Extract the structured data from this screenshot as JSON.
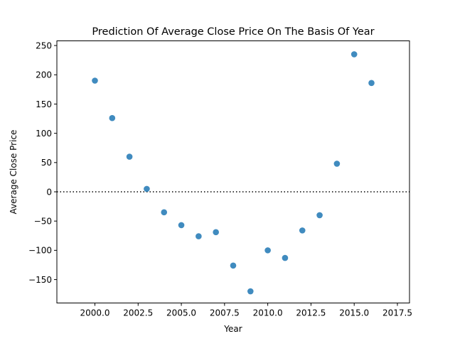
{
  "chart_data": {
    "type": "scatter",
    "title": "Prediction Of Average Close Price On The Basis Of Year",
    "xlabel": "Year",
    "ylabel": "Average Close Price",
    "xlim": [
      1997.8,
      2018.2
    ],
    "ylim": [
      -190,
      258
    ],
    "xticks": [
      2000,
      2002.5,
      2005,
      2007.5,
      2010,
      2012.5,
      2015,
      2017.5
    ],
    "xtick_labels": [
      "2000.0",
      "2002.5",
      "2005.0",
      "2007.5",
      "2010.0",
      "2012.5",
      "2015.0",
      "2017.5"
    ],
    "yticks": [
      -150,
      -100,
      -50,
      0,
      50,
      100,
      150,
      200,
      250
    ],
    "ytick_labels": [
      "−150",
      "−100",
      "−50",
      "0",
      "50",
      "100",
      "150",
      "200",
      "250"
    ],
    "reference_line": {
      "y": 0,
      "style": "dotted"
    },
    "grid": false,
    "series": [
      {
        "color": "#1f77b4",
        "x": [
          2000,
          2001,
          2002,
          2003,
          2004,
          2005,
          2006,
          2007,
          2008,
          2009,
          2010,
          2011,
          2012,
          2013,
          2014,
          2015,
          2016
        ],
        "y": [
          190,
          126,
          60,
          5,
          -35,
          -57,
          -76,
          -69,
          -126,
          -170,
          -100,
          -113,
          -66,
          -40,
          48,
          235,
          186
        ]
      }
    ]
  }
}
